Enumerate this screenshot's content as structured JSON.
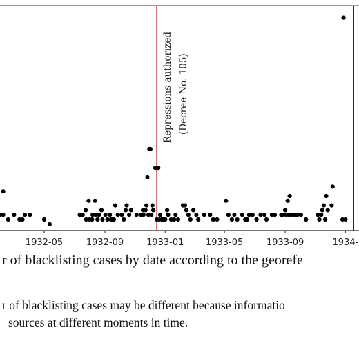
{
  "chart_data": {
    "type": "scatter",
    "x_axis_type": "date",
    "xlim": [
      "1932-02-01",
      "1934-01-09"
    ],
    "x_ticks": [
      "1932-05",
      "1932-09",
      "1933-01",
      "1933-05",
      "1933-09",
      "1934-"
    ],
    "grid": false,
    "colors": {
      "points": "#000000",
      "repressions_line": "#cc2222",
      "right_line": "#1a1aa8"
    },
    "annotations": [
      {
        "date": "1932-12-15",
        "line1": "Repressions authorized",
        "line2": "(Decree No. 105)",
        "color": "#cc2222"
      }
    ],
    "points": [
      {
        "x": "1932-02-02",
        "y": 1
      },
      {
        "x": "1932-02-08",
        "y": 6
      },
      {
        "x": "1932-02-08",
        "y": 1
      },
      {
        "x": "1932-02-18",
        "y": 0
      },
      {
        "x": "1932-03-01",
        "y": 1
      },
      {
        "x": "1932-03-12",
        "y": 0
      },
      {
        "x": "1932-03-18",
        "y": 0
      },
      {
        "x": "1932-03-23",
        "y": 1
      },
      {
        "x": "1932-04-02",
        "y": 1
      },
      {
        "x": "1932-05-01",
        "y": 0
      },
      {
        "x": "1932-05-12",
        "y": -1
      },
      {
        "x": "1932-07-12",
        "y": 1
      },
      {
        "x": "1932-07-18",
        "y": 1
      },
      {
        "x": "1932-07-24",
        "y": 2
      },
      {
        "x": "1932-07-25",
        "y": 0
      },
      {
        "x": "1932-07-30",
        "y": 4
      },
      {
        "x": "1932-08-01",
        "y": 0
      },
      {
        "x": "1932-08-06",
        "y": 0
      },
      {
        "x": "1932-08-07",
        "y": 1
      },
      {
        "x": "1932-08-12",
        "y": 4
      },
      {
        "x": "1932-08-13",
        "y": 1
      },
      {
        "x": "1932-08-17",
        "y": 0
      },
      {
        "x": "1932-08-20",
        "y": 1
      },
      {
        "x": "1932-08-25",
        "y": 2
      },
      {
        "x": "1932-08-27",
        "y": 0
      },
      {
        "x": "1932-09-02",
        "y": 1
      },
      {
        "x": "1932-09-06",
        "y": 0
      },
      {
        "x": "1932-09-11",
        "y": 1
      },
      {
        "x": "1932-09-13",
        "y": 0
      },
      {
        "x": "1932-09-16",
        "y": 0
      },
      {
        "x": "1932-09-19",
        "y": 0
      },
      {
        "x": "1932-09-22",
        "y": 3
      },
      {
        "x": "1932-09-27",
        "y": 1
      },
      {
        "x": "1932-10-05",
        "y": 1
      },
      {
        "x": "1932-10-09",
        "y": 0
      },
      {
        "x": "1932-10-13",
        "y": 2
      },
      {
        "x": "1932-10-15",
        "y": 3
      },
      {
        "x": "1932-10-20",
        "y": 1
      },
      {
        "x": "1932-10-24",
        "y": 2
      },
      {
        "x": "1932-11-04",
        "y": 1
      },
      {
        "x": "1932-11-13",
        "y": 1
      },
      {
        "x": "1932-11-17",
        "y": 2
      },
      {
        "x": "1932-11-18",
        "y": 1
      },
      {
        "x": "1932-11-22",
        "y": 2
      },
      {
        "x": "1932-11-24",
        "y": 3
      },
      {
        "x": "1932-11-26",
        "y": 9
      },
      {
        "x": "1932-11-28",
        "y": 1
      },
      {
        "x": "1932-11-30",
        "y": 15
      },
      {
        "x": "1932-12-02",
        "y": 15
      },
      {
        "x": "1932-12-04",
        "y": 1
      },
      {
        "x": "1932-12-06",
        "y": 3
      },
      {
        "x": "1932-12-08",
        "y": 2
      },
      {
        "x": "1932-12-12",
        "y": 11
      },
      {
        "x": "1932-12-15",
        "y": 0
      },
      {
        "x": "1932-12-18",
        "y": 11
      },
      {
        "x": "1932-12-20",
        "y": 0
      },
      {
        "x": "1932-12-22",
        "y": 1
      },
      {
        "x": "1932-12-25",
        "y": 0
      },
      {
        "x": "1932-12-28",
        "y": 0
      },
      {
        "x": "1933-01-01",
        "y": 0
      },
      {
        "x": "1933-01-05",
        "y": 2
      },
      {
        "x": "1933-01-07",
        "y": 1
      },
      {
        "x": "1933-01-13",
        "y": 0
      },
      {
        "x": "1933-01-19",
        "y": 0
      },
      {
        "x": "1933-01-22",
        "y": 1
      },
      {
        "x": "1933-01-27",
        "y": 0
      },
      {
        "x": "1933-02-06",
        "y": 3
      },
      {
        "x": "1933-02-10",
        "y": 3
      },
      {
        "x": "1933-02-13",
        "y": 2
      },
      {
        "x": "1933-02-17",
        "y": 1
      },
      {
        "x": "1933-02-21",
        "y": 0
      },
      {
        "x": "1933-02-27",
        "y": 2
      },
      {
        "x": "1933-03-05",
        "y": 1
      },
      {
        "x": "1933-03-09",
        "y": 0
      },
      {
        "x": "1933-03-21",
        "y": 1
      },
      {
        "x": "1933-04-02",
        "y": 1
      },
      {
        "x": "1933-04-08",
        "y": 0
      },
      {
        "x": "1933-04-16",
        "y": 0
      },
      {
        "x": "1933-05-04",
        "y": 4
      },
      {
        "x": "1933-05-09",
        "y": 1
      },
      {
        "x": "1933-05-16",
        "y": 0
      },
      {
        "x": "1933-05-21",
        "y": 1
      },
      {
        "x": "1933-05-27",
        "y": 0
      },
      {
        "x": "1933-06-06",
        "y": 1
      },
      {
        "x": "1933-06-12",
        "y": 0
      },
      {
        "x": "1933-06-16",
        "y": 0
      },
      {
        "x": "1933-06-20",
        "y": 1
      },
      {
        "x": "1933-06-27",
        "y": 1
      },
      {
        "x": "1933-07-05",
        "y": 0
      },
      {
        "x": "1933-07-13",
        "y": 1
      },
      {
        "x": "1933-07-21",
        "y": 1
      },
      {
        "x": "1933-07-25",
        "y": 0
      },
      {
        "x": "1933-08-05",
        "y": 1
      },
      {
        "x": "1933-08-11",
        "y": 1
      },
      {
        "x": "1933-08-24",
        "y": 1
      },
      {
        "x": "1933-08-28",
        "y": 1
      },
      {
        "x": "1933-09-01",
        "y": 2
      },
      {
        "x": "1933-09-03",
        "y": 1
      },
      {
        "x": "1933-09-06",
        "y": 4
      },
      {
        "x": "1933-09-08",
        "y": 1
      },
      {
        "x": "1933-09-10",
        "y": 5
      },
      {
        "x": "1933-09-13",
        "y": 1
      },
      {
        "x": "1933-09-18",
        "y": 1
      },
      {
        "x": "1933-09-23",
        "y": 1
      },
      {
        "x": "1933-09-26",
        "y": 1
      },
      {
        "x": "1933-10-03",
        "y": 1
      },
      {
        "x": "1933-10-13",
        "y": 0
      },
      {
        "x": "1933-11-06",
        "y": 1
      },
      {
        "x": "1933-11-09",
        "y": 0
      },
      {
        "x": "1933-11-13",
        "y": 1
      },
      {
        "x": "1933-11-15",
        "y": 2
      },
      {
        "x": "1933-11-18",
        "y": 3
      },
      {
        "x": "1933-11-21",
        "y": 0
      },
      {
        "x": "1933-11-23",
        "y": 5
      },
      {
        "x": "1933-11-26",
        "y": 2
      },
      {
        "x": "1933-12-04",
        "y": 3
      },
      {
        "x": "1933-12-06",
        "y": 7
      },
      {
        "x": "1933-12-26",
        "y": 0
      },
      {
        "x": "1934-01-01",
        "y": 0
      },
      {
        "x": "1933-12-28",
        "y": 43
      }
    ],
    "xlabel": "",
    "ylabel": ""
  },
  "caption": "r of blacklisting cases by date according to the georefe",
  "note_line1": "r of blacklisting cases may be different because informatio",
  "note_line2": "sources at different moments in time."
}
